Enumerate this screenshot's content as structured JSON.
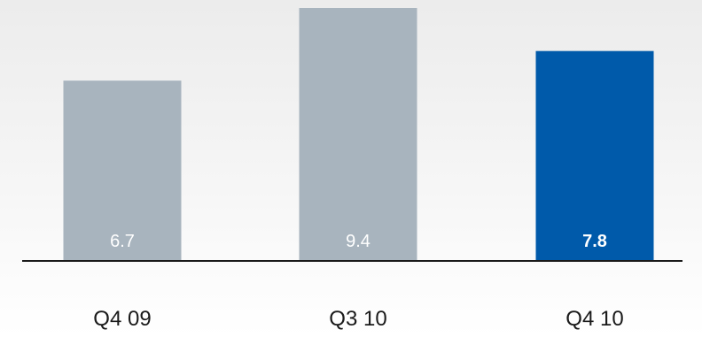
{
  "chart_data": {
    "type": "bar",
    "categories": [
      "Q4 09",
      "Q3 10",
      "Q4 10"
    ],
    "values": [
      6.7,
      9.4,
      7.8
    ],
    "value_labels": [
      "6.7",
      "9.4",
      "7.8"
    ],
    "highlighted_index": 2,
    "ylim": [
      0,
      9.4
    ],
    "grid": false,
    "colors": {
      "bar": "#a8b4be",
      "highlight": "#005aaa",
      "baseline": "#1a1a1a",
      "text": "#1a1a1a",
      "value_text": "#ffffff"
    }
  }
}
